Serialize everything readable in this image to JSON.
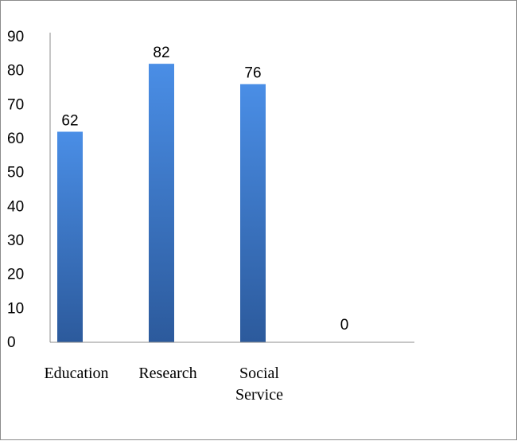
{
  "chart_data": {
    "type": "bar",
    "title": "",
    "xlabel": "",
    "ylabel": "",
    "categories": [
      [
        "Education"
      ],
      [
        "Research"
      ],
      [
        "Social",
        "Service"
      ],
      [
        ""
      ]
    ],
    "values": [
      62,
      82,
      76,
      0
    ],
    "data_labels": [
      "62",
      "82",
      "76",
      "0"
    ],
    "ylim": [
      0,
      90
    ],
    "yticks": [
      0,
      10,
      20,
      30,
      40,
      50,
      60,
      70,
      80,
      90
    ],
    "ytick_labels": [
      "0",
      "10",
      "20",
      "30",
      "40",
      "50",
      "60",
      "70",
      "80",
      "90"
    ],
    "grid": false,
    "legend": "none",
    "bar_color_light": "#4a8ee6",
    "bar_color_dark": "#2c5a9c",
    "axis_color": "#8c8c8c"
  }
}
